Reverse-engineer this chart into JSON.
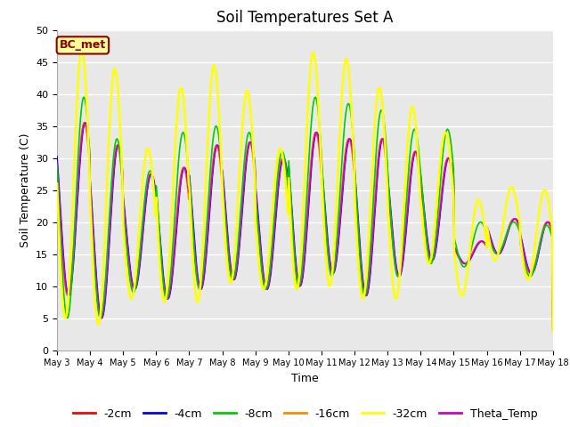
{
  "title": "Soil Temperatures Set A",
  "xlabel": "Time",
  "ylabel": "Soil Temperature (C)",
  "ylim": [
    0,
    50
  ],
  "annotation": "BC_met",
  "series_labels": [
    "-2cm",
    "-4cm",
    "-8cm",
    "-16cm",
    "-32cm",
    "Theta_Temp"
  ],
  "series_colors": [
    "#ff0000",
    "#0000ff",
    "#00cc00",
    "#ff8800",
    "#ffff00",
    "#cc00cc"
  ],
  "series_linewidths": [
    1.2,
    1.2,
    1.2,
    1.2,
    1.8,
    1.2
  ],
  "tick_labels": [
    "May 3",
    "May 4",
    "May 5",
    "May 6",
    "May 7",
    "May 8",
    "May 9",
    "May 10",
    "May 11",
    "May 12",
    "May 13",
    "May 14",
    "May 15",
    "May 16",
    "May 17",
    "May 18"
  ],
  "background_color": "#e8e8e8",
  "title_fontsize": 12,
  "axis_label_fontsize": 9,
  "legend_fontsize": 9,
  "day_mins_cluster": [
    8.5,
    5.0,
    9.5,
    8.0,
    9.5,
    11.0,
    9.5,
    10.0,
    12.0,
    8.5,
    11.5,
    14.0,
    13.5,
    15.0,
    12.0
  ],
  "day_peaks_cluster": [
    35.5,
    32.0,
    27.5,
    28.5,
    32.0,
    32.5,
    30.0,
    34.0,
    33.0,
    33.0,
    31.0,
    30.0,
    17.0,
    20.5,
    20.0
  ],
  "day_mins_yellow": [
    5.0,
    4.0,
    8.0,
    7.5,
    7.5,
    10.5,
    9.5,
    9.5,
    10.0,
    8.0,
    8.0,
    13.5,
    8.5,
    14.0,
    11.0
  ],
  "day_peaks_yellow": [
    47.0,
    44.0,
    31.5,
    41.0,
    44.5,
    40.5,
    31.5,
    46.5,
    45.5,
    41.0,
    38.0,
    34.0,
    23.5,
    25.5,
    25.0
  ],
  "day_mins_green": [
    5.0,
    5.0,
    9.0,
    8.0,
    9.5,
    11.0,
    9.5,
    10.0,
    11.5,
    8.5,
    11.5,
    13.5,
    13.0,
    15.0,
    11.5
  ],
  "day_peaks_green": [
    39.5,
    33.0,
    28.0,
    34.0,
    35.0,
    34.0,
    31.0,
    39.5,
    38.5,
    37.5,
    34.5,
    34.5,
    20.0,
    20.0,
    19.5
  ]
}
